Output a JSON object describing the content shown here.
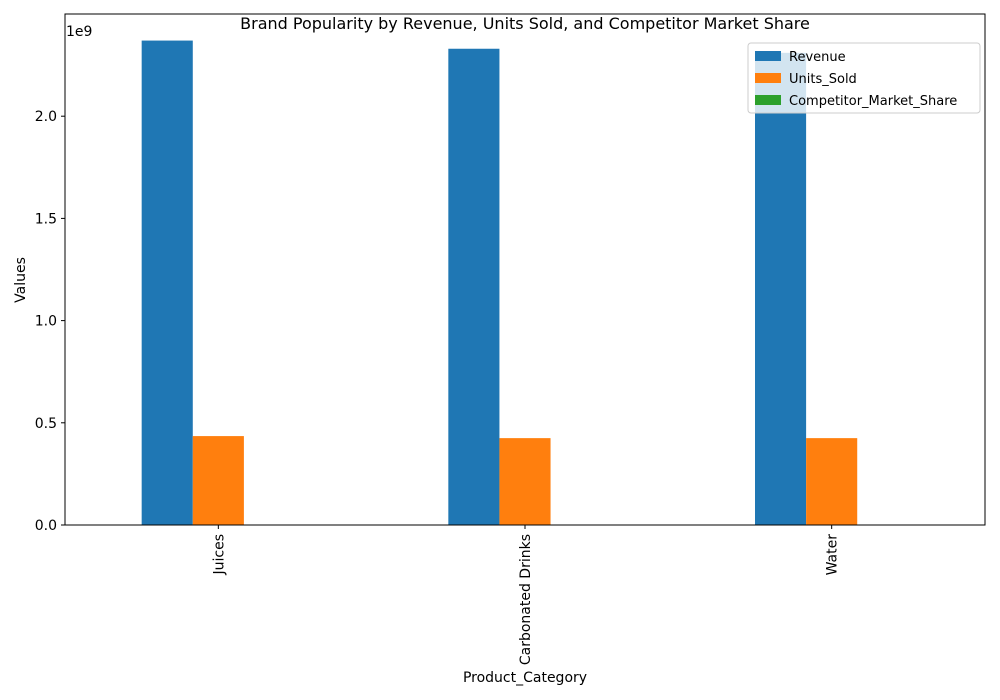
{
  "chart_data": {
    "type": "bar",
    "title": "Brand Popularity by Revenue, Units Sold, and Competitor Market Share",
    "xlabel": "Product_Category",
    "ylabel": "Values",
    "offset_label": "1e9",
    "categories": [
      "Juices",
      "Carbonated Drinks",
      "Water"
    ],
    "series": [
      {
        "name": "Revenue",
        "values": [
          2370000000,
          2330000000,
          2310000000
        ],
        "color": "#1f77b4"
      },
      {
        "name": "Units_Sold",
        "values": [
          435000000,
          425000000,
          425000000
        ],
        "color": "#ff7f0e"
      },
      {
        "name": "Competitor_Market_Share",
        "values": [
          0.33,
          0.33,
          0.33
        ],
        "color": "#2ca02c"
      }
    ],
    "ylim": [
      0,
      2500000000
    ],
    "yticks": [
      0,
      500000000,
      1000000000,
      1500000000,
      2000000000
    ],
    "ytick_labels": [
      "0.0",
      "0.5",
      "1.0",
      "1.5",
      "2.0"
    ],
    "grid": false,
    "legend_position": "top-right",
    "x_tick_rotation": "vertical"
  }
}
